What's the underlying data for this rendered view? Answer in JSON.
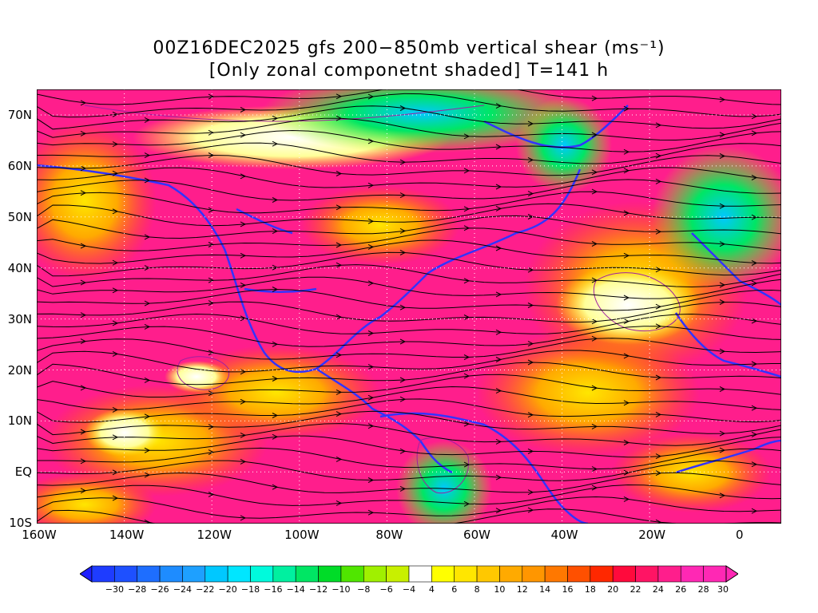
{
  "title": {
    "line1": "00Z16DEC2025 gfs 200−850mb vertical shear (ms⁻¹)",
    "line2": "[Only zonal componetnt shaded] T=141 h"
  },
  "map": {
    "lat_labels": [
      "70N",
      "60N",
      "50N",
      "40N",
      "30N",
      "20N",
      "10N",
      "EQ",
      "10S"
    ],
    "lon_labels": [
      "160W",
      "140W",
      "120W",
      "100W",
      "80W",
      "60W",
      "40W",
      "20W",
      "0"
    ],
    "lon_range": [
      -160,
      10
    ],
    "lat_range": [
      -10,
      75
    ]
  },
  "colorbar": {
    "labels": [
      "−30",
      "−28",
      "−26",
      "−24",
      "−22",
      "−20",
      "−18",
      "−16",
      "−14",
      "−12",
      "−10",
      "−8",
      "−6",
      "−4",
      "4",
      "6",
      "8",
      "10",
      "12",
      "14",
      "16",
      "18",
      "20",
      "22",
      "24",
      "26",
      "28",
      "30"
    ],
    "colors": [
      "#1e3cff",
      "#1e50ff",
      "#1e6eff",
      "#1e8cff",
      "#1ea0ff",
      "#00c8ff",
      "#00e6ff",
      "#00fadc",
      "#00f0a0",
      "#00e664",
      "#00dc28",
      "#50e600",
      "#a0f000",
      "#c8f000",
      "#ffffff",
      "#ffff00",
      "#ffe600",
      "#ffc800",
      "#ffaa00",
      "#ff9600",
      "#ff7800",
      "#ff5000",
      "#ff2800",
      "#ff0a3c",
      "#ff1464",
      "#ff1e8c",
      "#ff28b4",
      "#ff28b4"
    ]
  },
  "colors": {
    "coast": "#3333ff",
    "streamline": "#000000",
    "contour": "#a020a0",
    "shear_high": "#ff1e8c",
    "shear_mid": "#ff7800",
    "shear_low": "#ffe600",
    "shear_neg": "#00e664"
  }
}
